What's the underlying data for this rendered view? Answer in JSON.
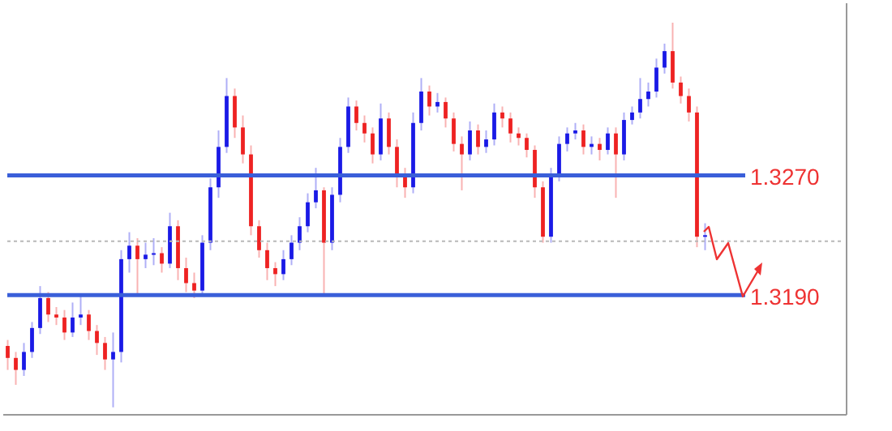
{
  "chart_data": {
    "type": "candlestick",
    "categories": [
      null,
      null,
      null,
      null,
      null,
      null,
      null,
      null,
      null,
      null,
      null,
      null,
      null,
      null,
      null,
      null,
      null,
      null,
      null,
      null,
      null,
      null,
      null,
      null,
      null,
      null,
      null,
      null,
      null,
      null,
      null,
      null,
      null,
      null,
      null,
      null,
      null,
      null,
      null,
      null,
      null,
      null,
      null,
      null,
      null,
      null,
      null,
      null,
      null,
      null,
      null,
      null,
      null,
      null,
      null,
      null,
      null,
      null,
      null,
      null,
      null,
      null,
      null,
      null,
      null,
      null,
      null,
      null,
      null,
      null,
      null,
      null,
      null,
      null,
      null,
      null,
      null,
      null,
      null,
      null,
      null,
      null,
      null,
      null,
      null,
      null,
      null,
      null,
      null,
      null,
      null,
      null,
      null,
      null,
      null,
      null,
      null,
      null,
      null,
      null,
      null,
      null,
      null,
      null
    ],
    "ohlc": [
      [
        1.3156,
        1.316,
        1.314,
        1.3148
      ],
      [
        1.3148,
        1.3152,
        1.313,
        1.314
      ],
      [
        1.314,
        1.3158,
        1.3136,
        1.3152
      ],
      [
        1.3152,
        1.3172,
        1.3148,
        1.3168
      ],
      [
        1.3168,
        1.3196,
        1.3164,
        1.3188
      ],
      [
        1.3188,
        1.3192,
        1.3172,
        1.3177
      ],
      [
        1.3177,
        1.3182,
        1.317,
        1.3175
      ],
      [
        1.3175,
        1.318,
        1.316,
        1.3165
      ],
      [
        1.3165,
        1.3185,
        1.3162,
        1.3175
      ],
      [
        1.3175,
        1.319,
        1.317,
        1.3177
      ],
      [
        1.3177,
        1.318,
        1.316,
        1.3166
      ],
      [
        1.3166,
        1.317,
        1.315,
        1.3158
      ],
      [
        1.3158,
        1.3162,
        1.314,
        1.3147
      ],
      [
        1.3147,
        1.3165,
        1.3115,
        1.3152
      ],
      [
        1.3152,
        1.322,
        1.3145,
        1.3214
      ],
      [
        1.3214,
        1.3232,
        1.3205,
        1.3223
      ],
      [
        1.3223,
        1.3228,
        1.319,
        1.3214
      ],
      [
        1.3214,
        1.3225,
        1.3208,
        1.3217
      ],
      [
        1.3217,
        1.3228,
        1.321,
        1.3218
      ],
      [
        1.3218,
        1.3222,
        1.3205,
        1.3211
      ],
      [
        1.3211,
        1.3245,
        1.3208,
        1.3236
      ],
      [
        1.3236,
        1.324,
        1.32,
        1.3208
      ],
      [
        1.3208,
        1.3215,
        1.3192,
        1.3198
      ],
      [
        1.3198,
        1.3205,
        1.3188,
        1.3193
      ],
      [
        1.3193,
        1.323,
        1.319,
        1.3225
      ],
      [
        1.3225,
        1.3268,
        1.322,
        1.3262
      ],
      [
        1.3262,
        1.33,
        1.3255,
        1.3289
      ],
      [
        1.3289,
        1.3335,
        1.3285,
        1.3323
      ],
      [
        1.3323,
        1.3328,
        1.3295,
        1.3302
      ],
      [
        1.3302,
        1.331,
        1.3278,
        1.3284
      ],
      [
        1.3284,
        1.329,
        1.323,
        1.3236
      ],
      [
        1.3236,
        1.324,
        1.3215,
        1.322
      ],
      [
        1.322,
        1.3225,
        1.32,
        1.3208
      ],
      [
        1.3208,
        1.3212,
        1.3196,
        1.3204
      ],
      [
        1.3204,
        1.322,
        1.32,
        1.3214
      ],
      [
        1.3214,
        1.323,
        1.321,
        1.3225
      ],
      [
        1.3225,
        1.3242,
        1.322,
        1.3236
      ],
      [
        1.3236,
        1.3258,
        1.3232,
        1.3252
      ],
      [
        1.3252,
        1.3275,
        1.3248,
        1.326
      ],
      [
        1.326,
        1.3262,
        1.319,
        1.3225
      ],
      [
        1.3225,
        1.3262,
        1.322,
        1.3257
      ],
      [
        1.3257,
        1.3295,
        1.3252,
        1.3289
      ],
      [
        1.3289,
        1.3322,
        1.3285,
        1.3316
      ],
      [
        1.3316,
        1.332,
        1.33,
        1.3305
      ],
      [
        1.3305,
        1.331,
        1.3292,
        1.3298
      ],
      [
        1.3298,
        1.3302,
        1.3278,
        1.3284
      ],
      [
        1.3284,
        1.3318,
        1.328,
        1.3308
      ],
      [
        1.3308,
        1.3312,
        1.3284,
        1.3289
      ],
      [
        1.3289,
        1.3294,
        1.3262,
        1.327
      ],
      [
        1.327,
        1.3275,
        1.3255,
        1.3262
      ],
      [
        1.3262,
        1.3312,
        1.3258,
        1.3305
      ],
      [
        1.3305,
        1.3335,
        1.33,
        1.3326
      ],
      [
        1.3326,
        1.333,
        1.331,
        1.3316
      ],
      [
        1.3316,
        1.3325,
        1.3312,
        1.3319
      ],
      [
        1.3319,
        1.3322,
        1.3302,
        1.3308
      ],
      [
        1.3308,
        1.3312,
        1.3286,
        1.3291
      ],
      [
        1.3291,
        1.3296,
        1.326,
        1.3284
      ],
      [
        1.3284,
        1.3306,
        1.328,
        1.33
      ],
      [
        1.33,
        1.3304,
        1.3284,
        1.3289
      ],
      [
        1.3289,
        1.33,
        1.3285,
        1.3294
      ],
      [
        1.3294,
        1.3318,
        1.329,
        1.3312
      ],
      [
        1.3312,
        1.3316,
        1.3302,
        1.3308
      ],
      [
        1.3308,
        1.3312,
        1.3292,
        1.3298
      ],
      [
        1.3298,
        1.3302,
        1.329,
        1.3295
      ],
      [
        1.3295,
        1.3298,
        1.3282,
        1.3287
      ],
      [
        1.3287,
        1.329,
        1.3255,
        1.3262
      ],
      [
        1.3262,
        1.3266,
        1.3225,
        1.3229
      ],
      [
        1.3229,
        1.3275,
        1.3225,
        1.327
      ],
      [
        1.327,
        1.3296,
        1.3266,
        1.3291
      ],
      [
        1.3291,
        1.3302,
        1.3286,
        1.3298
      ],
      [
        1.3298,
        1.3305,
        1.3294,
        1.33
      ],
      [
        1.33,
        1.3304,
        1.3284,
        1.3289
      ],
      [
        1.3289,
        1.3296,
        1.3284,
        1.3291
      ],
      [
        1.3291,
        1.3295,
        1.328,
        1.3287
      ],
      [
        1.3287,
        1.3302,
        1.3284,
        1.3298
      ],
      [
        1.3298,
        1.3302,
        1.3255,
        1.3284
      ],
      [
        1.3284,
        1.3312,
        1.328,
        1.3307
      ],
      [
        1.3307,
        1.3316,
        1.3304,
        1.3312
      ],
      [
        1.3312,
        1.3335,
        1.3308,
        1.3321
      ],
      [
        1.3321,
        1.3332,
        1.3316,
        1.3326
      ],
      [
        1.3326,
        1.3348,
        1.3322,
        1.3342
      ],
      [
        1.3342,
        1.3358,
        1.3338,
        1.3353
      ],
      [
        1.3353,
        1.3372,
        1.3328,
        1.3332
      ],
      [
        1.3332,
        1.3336,
        1.3318,
        1.3323
      ],
      [
        1.3323,
        1.3328,
        1.3306,
        1.3312
      ],
      [
        1.3312,
        1.3316,
        1.3222,
        1.3229
      ],
      [
        1.3229,
        1.3238,
        1.322,
        1.323
      ],
      null,
      null,
      null,
      null,
      null,
      null,
      null,
      null,
      null,
      null,
      null,
      null,
      null,
      null,
      null,
      null,
      null
    ],
    "colors": [
      "#ee2222",
      "#ee2222",
      "#1a1ae6",
      "#1a1ae6",
      "#1a1ae6",
      "#ee2222",
      "#ee2222",
      "#ee2222",
      "#1a1ae6",
      "#1a1ae6",
      "#ee2222",
      "#ee2222",
      "#ee2222",
      "#1a1ae6",
      "#1a1ae6",
      "#1a1ae6",
      "#ee2222",
      "#1a1ae6",
      "#1a1ae6",
      "#ee2222",
      "#1a1ae6",
      "#ee2222",
      "#ee2222",
      "#ee2222",
      "#1a1ae6",
      "#1a1ae6",
      "#1a1ae6",
      "#1a1ae6",
      "#ee2222",
      "#ee2222",
      "#ee2222",
      "#ee2222",
      "#ee2222",
      "#ee2222",
      "#1a1ae6",
      "#1a1ae6",
      "#1a1ae6",
      "#1a1ae6",
      "#1a1ae6",
      "#ee2222",
      "#1a1ae6",
      "#1a1ae6",
      "#1a1ae6",
      "#ee2222",
      "#ee2222",
      "#ee2222",
      "#1a1ae6",
      "#ee2222",
      "#ee2222",
      "#ee2222",
      "#1a1ae6",
      "#1a1ae6",
      "#ee2222",
      "#1a1ae6",
      "#ee2222",
      "#ee2222",
      "#ee2222",
      "#1a1ae6",
      "#ee2222",
      "#1a1ae6",
      "#1a1ae6",
      "#ee2222",
      "#ee2222",
      "#ee2222",
      "#ee2222",
      "#ee2222",
      "#ee2222",
      "#1a1ae6",
      "#1a1ae6",
      "#1a1ae6",
      "#1a1ae6",
      "#ee2222",
      "#1a1ae6",
      "#ee2222",
      "#1a1ae6",
      "#ee2222",
      "#1a1ae6",
      "#1a1ae6",
      "#1a1ae6",
      "#1a1ae6",
      "#1a1ae6",
      "#1a1ae6",
      "#ee2222",
      "#ee2222",
      "#ee2222",
      "#ee2222",
      "#1a1ae6",
      null,
      null,
      null,
      null,
      null,
      null,
      null,
      null,
      null,
      null,
      null,
      null,
      null,
      null,
      null,
      null,
      null
    ],
    "ylim": [
      1.311,
      1.3385
    ],
    "ref_lines": [
      {
        "axis": "y",
        "value": 1.327,
        "label": "1.3270",
        "color": "#3a5fd9",
        "line_style": "solid"
      },
      {
        "axis": "y",
        "value": 1.319,
        "label": "1.3190",
        "color": "#3a5fd9",
        "line_style": "solid"
      },
      {
        "axis": "y",
        "value": 1.3226,
        "label": null,
        "color": "#b8b8b8",
        "line_style": "dotted"
      }
    ],
    "tick_labels": false,
    "legend": false,
    "grid": false
  }
}
